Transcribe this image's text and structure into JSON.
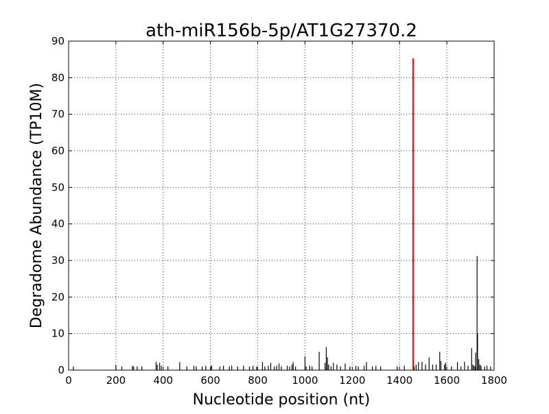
{
  "chart_data": {
    "type": "bar",
    "title": "ath-miR156b-5p/AT1G27370.2",
    "xlabel": "Nucleotide position (nt)",
    "ylabel": "Degradome Abundance (TP10M)",
    "xlim": [
      0,
      1800
    ],
    "ylim": [
      0,
      90
    ],
    "xticks": [
      0,
      200,
      400,
      600,
      800,
      1000,
      1200,
      1400,
      1600,
      1800
    ],
    "yticks": [
      0,
      10,
      20,
      30,
      40,
      50,
      60,
      70,
      80,
      90
    ],
    "grid": true,
    "colors": {
      "background": "#ffffff",
      "bars": "#000000",
      "highlight": "#ff0000"
    },
    "series": [
      {
        "points": [
          {
            "x": 20,
            "y": 1.0
          },
          {
            "x": 200,
            "y": 1.5
          },
          {
            "x": 225,
            "y": 1.0
          },
          {
            "x": 270,
            "y": 1.2
          },
          {
            "x": 275,
            "y": 1.0
          },
          {
            "x": 290,
            "y": 1.0
          },
          {
            "x": 310,
            "y": 1.0
          },
          {
            "x": 370,
            "y": 2.3
          },
          {
            "x": 375,
            "y": 1.5
          },
          {
            "x": 385,
            "y": 2.0
          },
          {
            "x": 392,
            "y": 1.2
          },
          {
            "x": 420,
            "y": 1.0
          },
          {
            "x": 470,
            "y": 2.2
          },
          {
            "x": 500,
            "y": 1.0
          },
          {
            "x": 530,
            "y": 1.2
          },
          {
            "x": 540,
            "y": 1.0
          },
          {
            "x": 565,
            "y": 1.0
          },
          {
            "x": 580,
            "y": 1.2
          },
          {
            "x": 600,
            "y": 1.0
          },
          {
            "x": 605,
            "y": 1.3
          },
          {
            "x": 640,
            "y": 1.0
          },
          {
            "x": 655,
            "y": 1.2
          },
          {
            "x": 680,
            "y": 1.0
          },
          {
            "x": 690,
            "y": 1.2
          },
          {
            "x": 715,
            "y": 1.0
          },
          {
            "x": 740,
            "y": 1.2
          },
          {
            "x": 765,
            "y": 1.0
          },
          {
            "x": 780,
            "y": 1.2
          },
          {
            "x": 795,
            "y": 1.0
          },
          {
            "x": 820,
            "y": 2.2
          },
          {
            "x": 830,
            "y": 1.0
          },
          {
            "x": 845,
            "y": 1.2
          },
          {
            "x": 855,
            "y": 2.0
          },
          {
            "x": 870,
            "y": 1.0
          },
          {
            "x": 880,
            "y": 1.2
          },
          {
            "x": 890,
            "y": 1.8
          },
          {
            "x": 900,
            "y": 1.0
          },
          {
            "x": 925,
            "y": 1.2
          },
          {
            "x": 935,
            "y": 1.0
          },
          {
            "x": 945,
            "y": 1.5
          },
          {
            "x": 950,
            "y": 2.2
          },
          {
            "x": 960,
            "y": 1.0
          },
          {
            "x": 1000,
            "y": 3.8
          },
          {
            "x": 1005,
            "y": 1.0
          },
          {
            "x": 1020,
            "y": 1.2
          },
          {
            "x": 1030,
            "y": 1.0
          },
          {
            "x": 1060,
            "y": 5.0
          },
          {
            "x": 1085,
            "y": 2.0
          },
          {
            "x": 1090,
            "y": 6.3
          },
          {
            "x": 1095,
            "y": 3.5
          },
          {
            "x": 1100,
            "y": 1.5
          },
          {
            "x": 1110,
            "y": 1.0
          },
          {
            "x": 1120,
            "y": 2.0
          },
          {
            "x": 1135,
            "y": 1.5
          },
          {
            "x": 1150,
            "y": 1.0
          },
          {
            "x": 1170,
            "y": 1.8
          },
          {
            "x": 1190,
            "y": 1.0
          },
          {
            "x": 1215,
            "y": 1.2
          },
          {
            "x": 1225,
            "y": 1.0
          },
          {
            "x": 1250,
            "y": 1.2
          },
          {
            "x": 1260,
            "y": 2.2
          },
          {
            "x": 1285,
            "y": 1.0
          },
          {
            "x": 1300,
            "y": 1.2
          },
          {
            "x": 1320,
            "y": 1.0
          },
          {
            "x": 1390,
            "y": 1.0
          },
          {
            "x": 1420,
            "y": 1.2
          },
          {
            "x": 1462,
            "y": 1.0
          },
          {
            "x": 1470,
            "y": 1.5
          },
          {
            "x": 1480,
            "y": 2.2
          },
          {
            "x": 1495,
            "y": 2.3
          },
          {
            "x": 1510,
            "y": 1.5
          },
          {
            "x": 1525,
            "y": 3.5
          },
          {
            "x": 1540,
            "y": 1.5
          },
          {
            "x": 1555,
            "y": 1.5
          },
          {
            "x": 1570,
            "y": 5.0
          },
          {
            "x": 1575,
            "y": 2.5
          },
          {
            "x": 1590,
            "y": 1.5
          },
          {
            "x": 1595,
            "y": 2.0
          },
          {
            "x": 1620,
            "y": 1.0
          },
          {
            "x": 1645,
            "y": 2.2
          },
          {
            "x": 1660,
            "y": 1.0
          },
          {
            "x": 1675,
            "y": 2.3
          },
          {
            "x": 1690,
            "y": 1.2
          },
          {
            "x": 1705,
            "y": 6.0
          },
          {
            "x": 1710,
            "y": 1.5
          },
          {
            "x": 1715,
            "y": 1.2
          },
          {
            "x": 1720,
            "y": 1.0
          },
          {
            "x": 1722,
            "y": 4.8
          },
          {
            "x": 1728,
            "y": 31.2
          },
          {
            "x": 1730,
            "y": 10.0
          },
          {
            "x": 1735,
            "y": 3.0
          },
          {
            "x": 1740,
            "y": 1.5
          },
          {
            "x": 1745,
            "y": 1.2
          },
          {
            "x": 1760,
            "y": 1.0
          },
          {
            "x": 1770,
            "y": 1.2
          },
          {
            "x": 1785,
            "y": 1.0
          }
        ]
      },
      {
        "highlight": true,
        "points": [
          {
            "x": 1458,
            "y": 85.3
          }
        ]
      }
    ]
  }
}
